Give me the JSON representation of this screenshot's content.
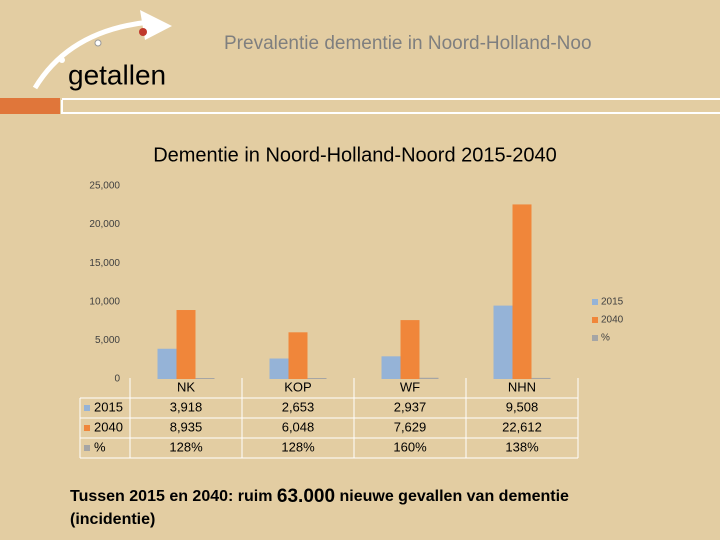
{
  "header": {
    "title": "Prevalentie dementie in Noord-Holland-Noo",
    "subtitle": "getallen"
  },
  "chart_data": {
    "type": "bar",
    "title": "Dementie in Noord-Holland-Noord 2015-2040",
    "categories": [
      "NK",
      "KOP",
      "WF",
      "NHN"
    ],
    "series": [
      {
        "name": "2015",
        "color": "#95b3d7",
        "values": [
          3918,
          2653,
          2937,
          9508
        ],
        "value_labels": [
          "3,918",
          "2,653",
          "2,937",
          "9,508"
        ]
      },
      {
        "name": "2040",
        "color": "#f0863a",
        "values": [
          8935,
          6048,
          7629,
          22612
        ],
        "value_labels": [
          "8,935",
          "6,048",
          "7,629",
          "22,612"
        ]
      },
      {
        "name": "%",
        "color": "#a5a5a5",
        "values": [
          128,
          128,
          160,
          138
        ],
        "value_labels": [
          "128%",
          "128%",
          "160%",
          "138%"
        ]
      }
    ],
    "ylim": [
      0,
      25000
    ],
    "yticks": [
      0,
      {
        "value": 5000,
        "label": "5,000"
      },
      {
        "value": 10000,
        "label": "10,000"
      },
      {
        "value": 15000,
        "label": "15,000"
      },
      {
        "value": 20000,
        "label": "20,000"
      },
      {
        "value": 25000,
        "label": "25,000"
      }
    ],
    "grid": false,
    "legend": "right"
  },
  "footer": {
    "start": "Tussen 2015 en 2040: ruim",
    "number": "63.000",
    "end": "nieuwe gevallen van dementie",
    "line2": "(incidentie)"
  }
}
